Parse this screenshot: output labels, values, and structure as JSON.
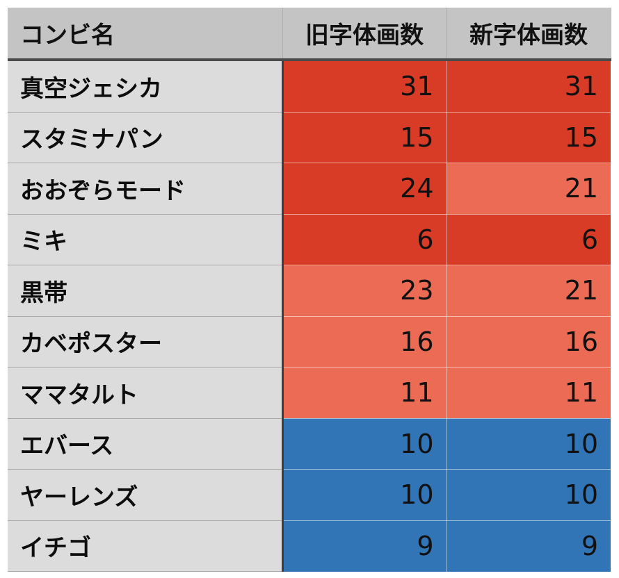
{
  "table": {
    "headers": [
      "コンビ名",
      "旧字体画数",
      "新字体画数"
    ],
    "color_levels": {
      "hi": "#d83b26",
      "mid": "#ec6b55",
      "lo": "#3175b6"
    },
    "rows": [
      {
        "name": "真空ジェシカ",
        "old": "31",
        "new": "31",
        "old_level": "hi",
        "new_level": "hi"
      },
      {
        "name": "スタミナパン",
        "old": "15",
        "new": "15",
        "old_level": "hi",
        "new_level": "hi"
      },
      {
        "name": "おおぞらモード",
        "old": "24",
        "new": "21",
        "old_level": "hi",
        "new_level": "mid"
      },
      {
        "name": "ミキ",
        "old": "6",
        "new": "6",
        "old_level": "hi",
        "new_level": "hi"
      },
      {
        "name": "黒帯",
        "old": "23",
        "new": "21",
        "old_level": "mid",
        "new_level": "mid"
      },
      {
        "name": "カベポスター",
        "old": "16",
        "new": "16",
        "old_level": "mid",
        "new_level": "mid"
      },
      {
        "name": "ママタルト",
        "old": "11",
        "new": "11",
        "old_level": "mid",
        "new_level": "mid"
      },
      {
        "name": "エバース",
        "old": "10",
        "new": "10",
        "old_level": "lo",
        "new_level": "lo"
      },
      {
        "name": "ヤーレンズ",
        "old": "10",
        "new": "10",
        "old_level": "lo",
        "new_level": "lo"
      },
      {
        "name": "イチゴ",
        "old": "9",
        "new": "9",
        "old_level": "lo",
        "new_level": "lo"
      }
    ]
  }
}
